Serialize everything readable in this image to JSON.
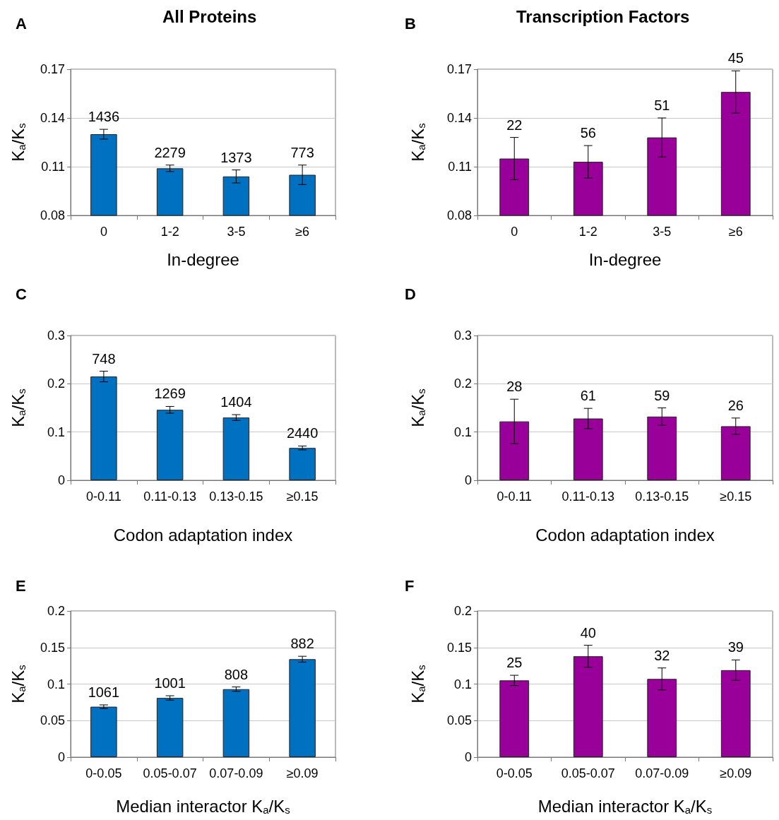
{
  "chart_data": [
    {
      "type": "bar",
      "title": "All Proteins",
      "xlabel": "In-degree",
      "ylabel": "K$_{a}$/K$_{s}$",
      "categories": [
        "0",
        "1-2",
        "3-5",
        "≥6"
      ],
      "values": [
        0.13,
        0.109,
        0.104,
        0.105
      ],
      "errors": [
        0.003,
        0.002,
        0.004,
        0.006
      ],
      "color": "#0070c0",
      "ylim": [
        0.08,
        0.17
      ],
      "yticks": [
        0.08,
        0.11,
        0.14,
        0.17
      ],
      "grid": "y",
      "annotations": [
        "A",
        "1436",
        "2279",
        "1373",
        "773"
      ]
    },
    {
      "type": "bar",
      "title": "Transcription Factors",
      "xlabel": "In-degree",
      "ylabel": "K$_{a}$/K$_{s}$",
      "categories": [
        "0",
        "1-2",
        "3-5",
        "≥6"
      ],
      "values": [
        0.115,
        0.113,
        0.128,
        0.156
      ],
      "errors": [
        0.013,
        0.01,
        0.012,
        0.013
      ],
      "color": "#990099",
      "ylim": [
        0.08,
        0.17
      ],
      "yticks": [
        0.08,
        0.11,
        0.14,
        0.17
      ],
      "grid": "y",
      "annotations": [
        "B",
        "22",
        "56",
        "51",
        "45"
      ]
    },
    {
      "type": "bar",
      "xlabel": "Codon adaptation index",
      "ylabel": "K$_{a}$/K$_{s}$",
      "categories": [
        "0-0.11",
        "0.11-0.13",
        "0.13-0.15",
        "≥0.15"
      ],
      "values": [
        0.215,
        0.146,
        0.13,
        0.067
      ],
      "errors": [
        0.011,
        0.007,
        0.006,
        0.004
      ],
      "color": "#0070c0",
      "ylim": [
        0,
        0.3
      ],
      "yticks": [
        0,
        0.1,
        0.2,
        0.3
      ],
      "grid": "y",
      "annotations": [
        "C",
        "748",
        "1269",
        "1404",
        "2440"
      ]
    },
    {
      "type": "bar",
      "xlabel": "Codon adaptation index",
      "ylabel": "K$_{a}$/K$_{s}$",
      "categories": [
        "0-0.11",
        "0.11-0.13",
        "0.13-0.15",
        "≥0.15"
      ],
      "values": [
        0.122,
        0.128,
        0.132,
        0.112
      ],
      "errors": [
        0.046,
        0.021,
        0.018,
        0.017
      ],
      "color": "#990099",
      "ylim": [
        0,
        0.3
      ],
      "yticks": [
        0,
        0.1,
        0.2,
        0.3
      ],
      "grid": "y",
      "annotations": [
        "D",
        "28",
        "61",
        "59",
        "26"
      ]
    },
    {
      "type": "bar",
      "xlabel": "Median interactor K$_{a}$/K$_{s}$",
      "ylabel": "K$_{a}$/K$_{s}$",
      "categories": [
        "0-0.05",
        "0.05-0.07",
        "0.07-0.09",
        "≥0.09"
      ],
      "values": [
        0.069,
        0.081,
        0.093,
        0.134
      ],
      "errors": [
        0.0025,
        0.003,
        0.003,
        0.004
      ],
      "color": "#0070c0",
      "ylim": [
        0,
        0.2
      ],
      "yticks": [
        0,
        0.05,
        0.1,
        0.15,
        0.2
      ],
      "grid": "y",
      "annotations": [
        "E",
        "1061",
        "1001",
        "808",
        "882"
      ]
    },
    {
      "type": "bar",
      "xlabel": "Median interactor K$_{a}$/K$_{s}$",
      "ylabel": "K$_{a}$/K$_{s}$",
      "categories": [
        "0-0.05",
        "0.05-0.07",
        "0.07-0.09",
        "≥0.09"
      ],
      "values": [
        0.105,
        0.138,
        0.107,
        0.119
      ],
      "errors": [
        0.007,
        0.015,
        0.015,
        0.014
      ],
      "color": "#990099",
      "ylim": [
        0,
        0.2
      ],
      "yticks": [
        0,
        0.05,
        0.1,
        0.15,
        0.2
      ],
      "grid": "y",
      "annotations": [
        "F",
        "25",
        "40",
        "32",
        "39"
      ]
    }
  ]
}
